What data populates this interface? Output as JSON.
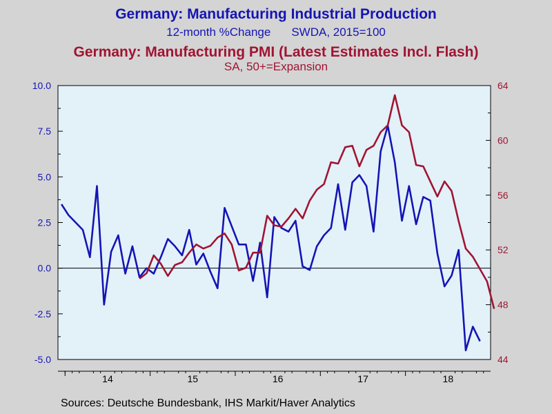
{
  "chart_data": {
    "type": "line",
    "title": "Germany: Manufacturing Industrial Production",
    "subtitle_left": "12-month %Change",
    "subtitle_right": "SWDA, 2015=100",
    "title2": "Germany: Manufacturing PMI (Latest Estimates Incl. Flash)",
    "subtitle2": "SA, 50+=Expansion",
    "source": "Sources:  Deutsche Bundesbank, IHS Markit/Haver Analytics",
    "x_tick_labels": [
      "14",
      "15",
      "16",
      "17",
      "18"
    ],
    "x_tick_months": [
      0,
      12,
      24,
      36,
      48
    ],
    "left_axis": {
      "ylim": [
        -5.0,
        10.0
      ],
      "ticks": [
        "-5.0",
        "-2.5",
        "0.0",
        "2.5",
        "5.0",
        "7.5",
        "10.0"
      ]
    },
    "right_axis": {
      "ylim": [
        44,
        64
      ],
      "ticks": [
        "44",
        "48",
        "52",
        "56",
        "60",
        "64"
      ]
    },
    "grid": false,
    "zero_line": true,
    "colors": {
      "ip": "#1414b4",
      "pmi": "#a01432",
      "plot_bg": "#e3f1f9",
      "page_bg": "#d4d4d4"
    },
    "series": [
      {
        "axis": "left",
        "start_month": -1,
        "values": [
          3.5,
          2.9,
          2.5,
          2.1,
          0.6,
          4.5,
          -2.0,
          0.9,
          1.8,
          -0.3,
          1.2,
          -0.5,
          0.0,
          -0.3,
          0.6,
          1.6,
          1.2,
          0.7,
          2.1,
          0.2,
          0.8,
          -0.2,
          -1.1,
          3.3,
          2.3,
          1.3,
          1.3,
          -0.7,
          1.4,
          -1.6,
          2.8,
          2.2,
          2.0,
          2.6,
          0.1,
          -0.1,
          1.2,
          1.8,
          2.2,
          4.6,
          2.1,
          4.7,
          5.1,
          4.5,
          2.0,
          6.4,
          7.8,
          5.8,
          2.6,
          4.5,
          2.4,
          3.9,
          3.7,
          0.8,
          -1.0,
          -0.4,
          1.0,
          -4.5,
          -3.2,
          -4.0
        ]
      },
      {
        "axis": "right",
        "start_month": 10,
        "values": [
          49.9,
          50.3,
          51.6,
          51.0,
          50.1,
          50.9,
          51.1,
          51.8,
          52.4,
          52.1,
          52.3,
          52.9,
          53.2,
          52.4,
          50.5,
          50.7,
          51.8,
          51.8,
          54.5,
          53.8,
          53.7,
          54.3,
          55.0,
          54.3,
          55.6,
          56.4,
          56.8,
          58.4,
          58.3,
          59.5,
          59.6,
          58.1,
          59.3,
          59.6,
          60.6,
          61.1,
          63.3,
          61.1,
          60.6,
          58.2,
          58.1,
          57.0,
          55.9,
          57.0,
          56.3,
          54.1,
          52.1,
          51.5,
          50.6,
          49.7,
          47.7
        ]
      }
    ]
  }
}
